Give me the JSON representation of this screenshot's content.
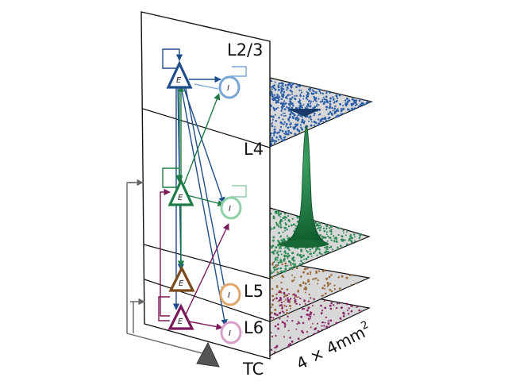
{
  "layers": [
    {
      "name": "L2/3",
      "color": "#1f4e8c",
      "inh_color": "#7aa6d8",
      "dot_color": "#2a5ea8"
    },
    {
      "name": "L4",
      "color": "#1e7a46",
      "inh_color": "#8fd0a8",
      "dot_color": "#2e8b57"
    },
    {
      "name": "L5",
      "color": "#7a4a1c",
      "inh_color": "#e0a86a",
      "dot_color": "#9a6a3a"
    },
    {
      "name": "L6",
      "color": "#7a1a5a",
      "inh_color": "#d8a0c8",
      "dot_color": "#8a2a6a"
    }
  ],
  "thalamus_label": "TC",
  "size_label": "4 × 4mm",
  "size_exponent": "2",
  "exc_symbol": "E",
  "inh_symbol": "I",
  "colors": {
    "plane_fill": "#dcdcdc",
    "thalamus": "#555555",
    "peak": "#1a6b3a"
  }
}
